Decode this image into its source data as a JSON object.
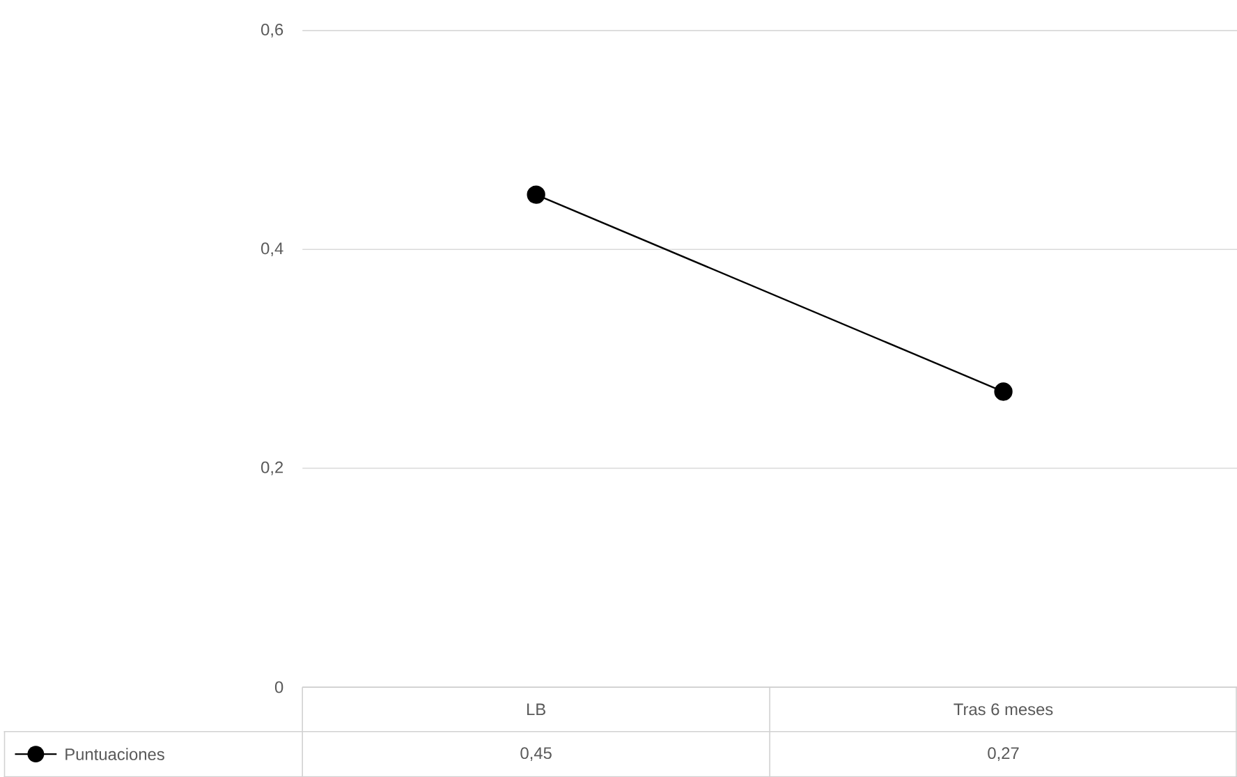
{
  "chart_data": {
    "type": "line",
    "categories": [
      "LB",
      "Tras 6 meses"
    ],
    "series": [
      {
        "name": "Puntuaciones",
        "color": "#000000",
        "values": [
          0.45,
          0.27
        ],
        "value_labels": [
          "0,45",
          "0,27"
        ]
      }
    ],
    "ylim": [
      0,
      0.6
    ],
    "yticks": [
      {
        "value": 0,
        "label": "0"
      },
      {
        "value": 0.2,
        "label": "0,2"
      },
      {
        "value": 0.4,
        "label": "0,4"
      },
      {
        "value": 0.6,
        "label": "0,6"
      }
    ],
    "grid": "y",
    "marker": "circle",
    "line_style": "solid"
  }
}
